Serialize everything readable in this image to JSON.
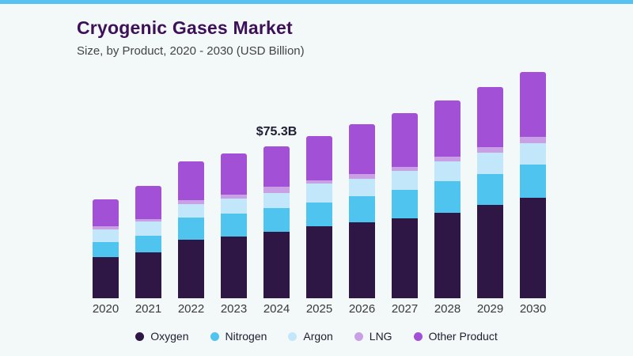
{
  "page": {
    "title": "Cryogenic Gases Market",
    "subtitle": "Size, by Product, 2020 - 2030 (USD Billion)",
    "accent_strip_color": "#56c1ee",
    "background_color": "#f3f8f9",
    "title_color": "#3d1059"
  },
  "legend": [
    {
      "label": "Oxygen",
      "color": "#2e1745"
    },
    {
      "label": "Nitrogen",
      "color": "#4fc4ef"
    },
    {
      "label": "Argon",
      "color": "#c3e7fa"
    },
    {
      "label": "LNG",
      "color": "#c9a0e6"
    },
    {
      "label": "Other Product",
      "color": "#a251d6"
    }
  ],
  "chart_data": {
    "type": "bar",
    "stacked": true,
    "title": "Cryogenic Gases Market",
    "subtitle": "Size, by Product, 2020 - 2030 (USD Billion)",
    "xlabel": "",
    "ylabel": "USD Billion",
    "grid": false,
    "legend_position": "bottom",
    "categories": [
      "2020",
      "2021",
      "2022",
      "2023",
      "2024",
      "2025",
      "2026",
      "2027",
      "2028",
      "2029",
      "2030"
    ],
    "series": [
      {
        "name": "Oxygen",
        "values": [
          20.5,
          22.9,
          29.0,
          30.4,
          33.0,
          35.5,
          37.5,
          39.4,
          42.3,
          46.0,
          49.9
        ]
      },
      {
        "name": "Nitrogen",
        "values": [
          7.2,
          8.1,
          11.1,
          11.3,
          11.7,
          12.0,
          13.1,
          14.4,
          15.6,
          15.6,
          16.3
        ]
      },
      {
        "name": "Argon",
        "values": [
          6.5,
          6.8,
          6.3,
          7.6,
          7.2,
          9.1,
          8.5,
          9.1,
          9.8,
          10.4,
          10.4
        ]
      },
      {
        "name": "LNG",
        "values": [
          1.3,
          1.3,
          2.2,
          2.0,
          3.2,
          1.7,
          2.2,
          2.0,
          2.3,
          2.6,
          3.3
        ]
      },
      {
        "name": "Other Product",
        "values": [
          13.3,
          16.3,
          19.2,
          20.2,
          20.2,
          22.1,
          24.8,
          26.5,
          27.8,
          30.0,
          32.2
        ]
      }
    ],
    "totals": [
      48.8,
      55.4,
      67.8,
      71.5,
      75.3,
      80.4,
      86.1,
      91.4,
      97.8,
      104.6,
      112.1
    ],
    "annotation": {
      "year": "2024",
      "text": "$75.3B"
    }
  }
}
